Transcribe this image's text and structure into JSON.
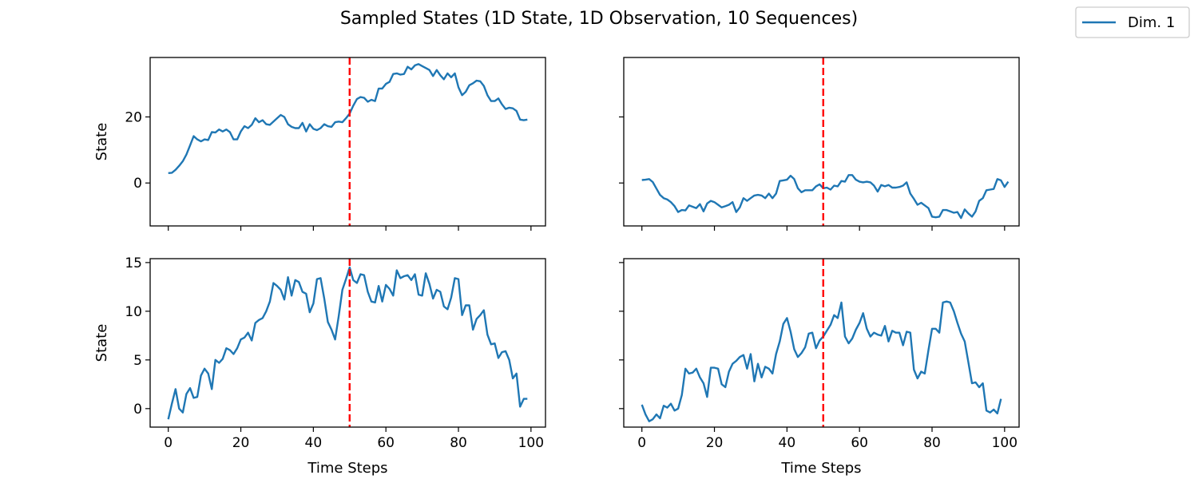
{
  "figure": {
    "title": "Sampled States (1D State, 1D Observation, 10 Sequences)",
    "legend": {
      "label": "Dim. 1",
      "color": "#1f77b4",
      "placement": "upper-right"
    },
    "series_color": "#1f77b4",
    "marker_color": "#ff0000"
  },
  "chart_data": [
    {
      "type": "line",
      "panel": "top-left",
      "ylabel": "State",
      "xlabel": "",
      "xlim": [
        -5,
        104
      ],
      "ylim": [
        -13,
        38
      ],
      "xticks": [
        "0",
        "20",
        "40",
        "60",
        "80",
        "100"
      ],
      "show_xtick_labels": false,
      "yticks": [
        "0",
        "20"
      ],
      "show_ytick_labels": true,
      "vline_x": 50,
      "x_start": 0,
      "series": [
        {
          "name": "Dim. 1",
          "values": [
            3.0,
            3.1,
            4.0,
            5.2,
            6.6,
            8.6,
            11.4,
            14.2,
            13.2,
            12.6,
            13.2,
            13.0,
            15.4,
            15.3,
            16.2,
            15.6,
            16.2,
            15.4,
            13.2,
            13.2,
            15.6,
            17.2,
            16.6,
            17.6,
            19.6,
            18.4,
            19.0,
            17.8,
            17.6,
            18.6,
            19.6,
            20.6,
            20.0,
            17.8,
            17.0,
            16.6,
            16.6,
            18.2,
            15.6,
            17.8,
            16.4,
            16.0,
            16.6,
            17.8,
            17.2,
            17.0,
            18.4,
            18.6,
            18.4,
            19.6,
            21.0,
            23.4,
            25.4,
            26.0,
            25.8,
            24.6,
            25.2,
            24.8,
            28.6,
            28.6,
            30.0,
            30.6,
            33.0,
            33.2,
            32.8,
            33.0,
            35.2,
            34.4,
            35.6,
            36.0,
            35.4,
            34.8,
            34.2,
            32.4,
            34.2,
            32.6,
            31.4,
            33.2,
            32.0,
            33.2,
            29.0,
            26.6,
            27.6,
            29.6,
            30.2,
            31.0,
            30.8,
            29.4,
            26.6,
            24.8,
            24.8,
            25.6,
            23.8,
            22.4,
            22.8,
            22.6,
            21.8,
            19.2,
            19.0,
            19.2
          ]
        }
      ]
    },
    {
      "type": "line",
      "panel": "top-right",
      "ylabel": "",
      "xlabel": "",
      "xlim": [
        -5,
        104
      ],
      "ylim": [
        -13,
        38
      ],
      "xticks": [
        "0",
        "20",
        "40",
        "60",
        "80",
        "100"
      ],
      "show_xtick_labels": false,
      "yticks": [
        "0",
        "20"
      ],
      "show_ytick_labels": false,
      "vline_x": 50,
      "x_start": 0,
      "series": [
        {
          "name": "Dim. 1",
          "values": [
            0.9,
            1.0,
            1.2,
            0.3,
            -1.7,
            -3.6,
            -4.6,
            -5.0,
            -5.8,
            -7.0,
            -8.8,
            -8.2,
            -8.3,
            -6.8,
            -7.2,
            -7.6,
            -6.4,
            -8.6,
            -6.2,
            -5.4,
            -5.8,
            -6.6,
            -7.4,
            -7.0,
            -6.6,
            -5.8,
            -8.8,
            -7.4,
            -4.6,
            -5.4,
            -4.6,
            -3.8,
            -3.6,
            -3.8,
            -4.6,
            -3.2,
            -4.6,
            -3.2,
            0.6,
            0.8,
            1.0,
            2.2,
            1.2,
            -1.6,
            -2.8,
            -2.2,
            -2.2,
            -2.2,
            -1.0,
            -0.4,
            -1.6,
            -1.4,
            -2.0,
            -0.8,
            -1.0,
            0.6,
            0.4,
            2.4,
            2.4,
            1.0,
            0.4,
            0.2,
            0.4,
            0.2,
            -0.8,
            -2.6,
            -0.6,
            -1.0,
            -0.6,
            -1.4,
            -1.4,
            -1.2,
            -0.8,
            0.2,
            -3.2,
            -4.8,
            -6.6,
            -6.0,
            -6.8,
            -7.6,
            -10.2,
            -10.4,
            -10.2,
            -8.2,
            -8.2,
            -8.6,
            -9.0,
            -8.8,
            -10.6,
            -8.0,
            -9.2,
            -10.2,
            -8.6,
            -5.4,
            -4.6,
            -2.2,
            -2.0,
            -1.8,
            1.2,
            0.8,
            -1.2,
            0.4
          ]
        }
      ]
    },
    {
      "type": "line",
      "panel": "bottom-left",
      "ylabel": "State",
      "xlabel": "Time Steps",
      "xlim": [
        -5,
        104
      ],
      "ylim": [
        -1.9,
        15.4
      ],
      "xticks": [
        "0",
        "20",
        "40",
        "60",
        "80",
        "100"
      ],
      "show_xtick_labels": true,
      "yticks": [
        "0",
        "5",
        "10",
        "15"
      ],
      "show_ytick_labels": true,
      "vline_x": 50,
      "x_start": 0,
      "series": [
        {
          "name": "Dim. 1",
          "values": [
            -1.1,
            0.5,
            2.0,
            0.0,
            -0.4,
            1.5,
            2.1,
            1.1,
            1.2,
            3.4,
            4.1,
            3.6,
            2.0,
            5.0,
            4.7,
            5.1,
            6.2,
            6.0,
            5.6,
            6.2,
            7.1,
            7.3,
            7.8,
            7.0,
            8.8,
            9.1,
            9.3,
            10.0,
            11.0,
            12.9,
            12.6,
            12.2,
            11.2,
            13.5,
            11.6,
            13.2,
            13.0,
            12.0,
            11.8,
            9.9,
            10.8,
            13.3,
            13.4,
            11.3,
            8.9,
            8.1,
            7.1,
            9.5,
            12.2,
            13.3,
            14.5,
            13.2,
            12.9,
            13.8,
            13.7,
            12.0,
            11.0,
            10.9,
            12.6,
            11.0,
            12.7,
            12.3,
            11.6,
            14.2,
            13.4,
            13.6,
            13.7,
            13.2,
            13.8,
            11.7,
            11.6,
            13.9,
            12.8,
            11.3,
            12.2,
            12.0,
            10.5,
            10.2,
            11.4,
            13.4,
            13.3,
            9.6,
            10.6,
            10.6,
            8.1,
            9.2,
            9.6,
            10.1,
            7.6,
            6.6,
            6.7,
            5.2,
            5.8,
            5.9,
            5.0,
            3.1,
            3.6,
            0.2,
            1.0,
            1.0
          ]
        }
      ]
    },
    {
      "type": "line",
      "panel": "bottom-right",
      "ylabel": "",
      "xlabel": "Time Steps",
      "xlim": [
        -5,
        104
      ],
      "ylim": [
        -1.9,
        15.4
      ],
      "xticks": [
        "0",
        "20",
        "40",
        "60",
        "80",
        "100"
      ],
      "show_xtick_labels": true,
      "yticks": [
        "0",
        "5",
        "10",
        "15"
      ],
      "show_ytick_labels": false,
      "vline_x": 50,
      "x_start": 0,
      "series": [
        {
          "name": "Dim. 1",
          "values": [
            0.4,
            -0.6,
            -1.3,
            -1.1,
            -0.6,
            -1.0,
            0.3,
            0.1,
            0.5,
            -0.2,
            0.0,
            1.4,
            4.1,
            3.6,
            3.7,
            4.1,
            3.2,
            2.6,
            1.2,
            4.2,
            4.2,
            4.1,
            2.5,
            2.2,
            3.8,
            4.6,
            4.9,
            5.3,
            5.5,
            4.1,
            5.6,
            2.8,
            4.6,
            3.2,
            4.3,
            4.1,
            3.6,
            5.6,
            6.9,
            8.7,
            9.3,
            7.9,
            6.1,
            5.3,
            5.7,
            6.3,
            7.7,
            7.8,
            6.2,
            7.0,
            7.4,
            8.0,
            8.6,
            9.6,
            9.3,
            10.9,
            7.4,
            6.7,
            7.2,
            8.1,
            8.8,
            9.8,
            8.2,
            7.4,
            7.8,
            7.6,
            7.5,
            8.5,
            6.9,
            8.0,
            7.8,
            7.8,
            6.5,
            7.9,
            7.8,
            4.0,
            3.1,
            3.8,
            3.6,
            6.0,
            8.2,
            8.2,
            7.8,
            10.9,
            11.0,
            10.9,
            10.0,
            8.8,
            7.7,
            6.9,
            4.8,
            2.6,
            2.7,
            2.2,
            2.6,
            -0.2,
            -0.4,
            -0.1,
            -0.5,
            1.0
          ]
        }
      ]
    }
  ]
}
